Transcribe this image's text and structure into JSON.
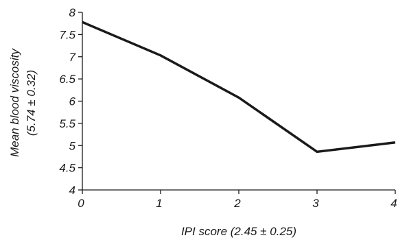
{
  "chart_data": {
    "type": "line",
    "xlabel": "IPI score (2.45 ± 0.25)",
    "ylabel_line1": "Mean blood viscosity",
    "ylabel_line2": "(5.74 ± 0.32)",
    "x": [
      0,
      1,
      2,
      3,
      4
    ],
    "series": [
      {
        "values": [
          7.78,
          7.03,
          6.08,
          4.86,
          5.07
        ]
      }
    ],
    "xlim": [
      0,
      4
    ],
    "ylim": [
      4,
      8
    ],
    "x_ticks": [
      "0",
      "1",
      "2",
      "3",
      "4"
    ],
    "y_ticks": [
      "4",
      "4.5",
      "5",
      "5.5",
      "6",
      "6.5",
      "7",
      "7.5",
      "8"
    ],
    "grid": false,
    "line_color": "#1a1a1a"
  }
}
